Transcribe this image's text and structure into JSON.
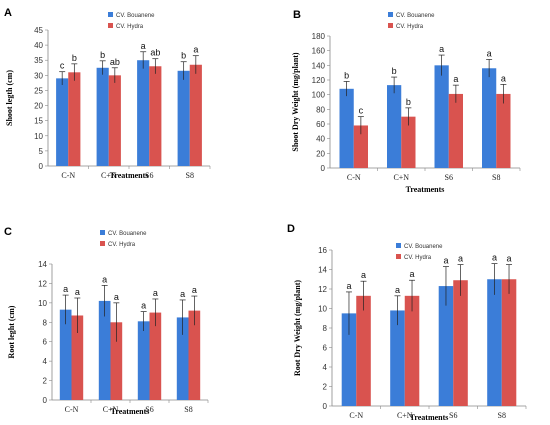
{
  "chart_data": [
    {
      "panel": "A",
      "type": "bar",
      "categories": [
        "C-N",
        "C+N",
        "S6",
        "S8"
      ],
      "series": [
        {
          "name": "CV. Bouanene",
          "color": "#3b7dd8",
          "values": [
            29,
            32.5,
            35,
            31.5
          ],
          "errors": [
            2.2,
            2.3,
            2.8,
            3
          ],
          "letters": [
            "c",
            "b",
            "a",
            "b"
          ]
        },
        {
          "name": "CV. Hydra",
          "color": "#d9534f",
          "values": [
            31,
            30,
            33,
            33.5
          ],
          "errors": [
            2.8,
            2.5,
            2.5,
            3
          ],
          "letters": [
            "b",
            "ab",
            "ab",
            "a"
          ]
        }
      ],
      "xlabel": "Treatments",
      "ylabel": "Shoot legth (cm)",
      "ylim": [
        0,
        45
      ],
      "yticks": [
        0,
        5,
        10,
        15,
        20,
        25,
        30,
        35,
        40,
        45
      ],
      "grid": false,
      "legend": "top-center"
    },
    {
      "panel": "B",
      "type": "bar",
      "categories": [
        "C-N",
        "C+N",
        "S6",
        "S8"
      ],
      "series": [
        {
          "name": "CV. Bouanene",
          "color": "#3b7dd8",
          "values": [
            108,
            113,
            140,
            136
          ],
          "errors": [
            10,
            11,
            14,
            12
          ],
          "letters": [
            "b",
            "b",
            "a",
            "a"
          ]
        },
        {
          "name": "CV. Hydra",
          "color": "#d9534f",
          "values": [
            58,
            70,
            101,
            101
          ],
          "errors": [
            12,
            12,
            12,
            13
          ],
          "letters": [
            "c",
            "b",
            "a",
            "a"
          ]
        }
      ],
      "xlabel": "Treatments",
      "ylabel": "Shoot Dry Weight (mg/plant)",
      "ylim": [
        0,
        180
      ],
      "yticks": [
        0,
        20,
        40,
        60,
        80,
        100,
        120,
        140,
        160,
        180
      ],
      "grid": false,
      "legend": "top-right"
    },
    {
      "panel": "C",
      "type": "bar",
      "categories": [
        "C-N",
        "C+N",
        "S6",
        "S8"
      ],
      "series": [
        {
          "name": "CV. Bouanene",
          "color": "#3b7dd8",
          "values": [
            9.3,
            10.2,
            8.1,
            8.5
          ],
          "errors": [
            1.5,
            1.6,
            1.0,
            1.8
          ],
          "letters": [
            "a",
            "a",
            "a",
            "a"
          ]
        },
        {
          "name": "CV. Hydra",
          "color": "#d9534f",
          "values": [
            8.7,
            8.0,
            9.0,
            9.2
          ],
          "errors": [
            1.8,
            2.0,
            1.4,
            1.5
          ],
          "letters": [
            "a",
            "a",
            "a",
            "a"
          ]
        }
      ],
      "xlabel": "Treatments",
      "ylabel": "Root leght (cm)",
      "ylim": [
        0,
        14
      ],
      "yticks": [
        0,
        2,
        4,
        6,
        8,
        10,
        12,
        14
      ],
      "grid": false,
      "legend": "top-left"
    },
    {
      "panel": "D",
      "type": "bar",
      "categories": [
        "C-N",
        "C+N",
        "S6",
        "S8"
      ],
      "series": [
        {
          "name": "CV. Bouanene",
          "color": "#3b7dd8",
          "values": [
            9.5,
            9.8,
            12.3,
            13
          ],
          "errors": [
            2.2,
            1.5,
            2.0,
            1.6
          ],
          "letters": [
            "a",
            "a",
            "a",
            "a"
          ]
        },
        {
          "name": "CV. Hydra",
          "color": "#d9534f",
          "values": [
            11.3,
            11.3,
            12.9,
            13
          ],
          "errors": [
            1.5,
            1.6,
            1.6,
            1.5
          ],
          "letters": [
            "a",
            "a",
            "a",
            "a"
          ]
        }
      ],
      "xlabel": "Treatments",
      "ylabel": "Root Dry Weight (mg/plant)",
      "ylim": [
        0,
        16
      ],
      "yticks": [
        0,
        2,
        4,
        6,
        8,
        10,
        12,
        14,
        16
      ],
      "grid": false,
      "legend": "top-left"
    }
  ]
}
